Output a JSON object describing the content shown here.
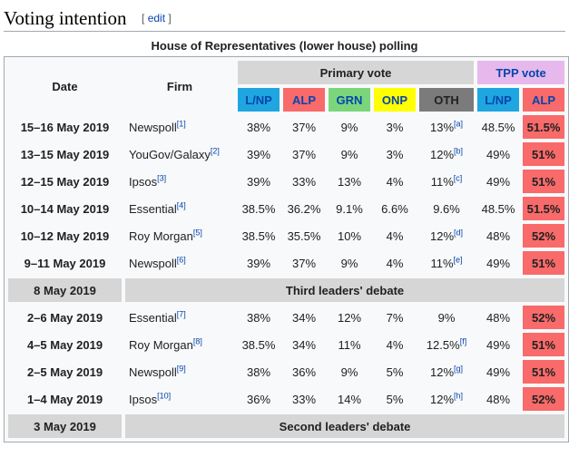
{
  "section": {
    "title": "Voting intention",
    "edit_open": "[",
    "edit_label": "edit",
    "edit_close": "]"
  },
  "table": {
    "caption": "House of Representatives (lower house) polling",
    "headers": {
      "date": "Date",
      "firm": "Firm",
      "primary": "Primary vote",
      "tpp": "TPP vote",
      "parties": [
        "L/NP",
        "ALP",
        "GRN",
        "ONP",
        "OTH"
      ],
      "tpp_parties": [
        "L/NP",
        "ALP"
      ]
    },
    "colors": {
      "lnp": "#1fa6e0",
      "alp": "#f96a6a",
      "grn": "#7bd67b",
      "onp": "#ffff00",
      "oth": "#7b7b7b",
      "tpp_header": "#e6b8ec",
      "event_bg": "#d6d6d6"
    },
    "rows": [
      {
        "date": "15–16 May 2019",
        "firm": "Newspoll",
        "ref": "[1]",
        "lnp": "38%",
        "alp": "37%",
        "grn": "9%",
        "onp": "3%",
        "oth": "13%",
        "oth_ref": "[a]",
        "tpp_lnp": "48.5%",
        "tpp_alp": "51.5%"
      },
      {
        "date": "13–15 May 2019",
        "firm": "YouGov/Galaxy",
        "ref": "[2]",
        "lnp": "39%",
        "alp": "37%",
        "grn": "9%",
        "onp": "3%",
        "oth": "12%",
        "oth_ref": "[b]",
        "tpp_lnp": "49%",
        "tpp_alp": "51%"
      },
      {
        "date": "12–15 May 2019",
        "firm": "Ipsos",
        "ref": "[3]",
        "lnp": "39%",
        "alp": "33%",
        "grn": "13%",
        "onp": "4%",
        "oth": "11%",
        "oth_ref": "[c]",
        "tpp_lnp": "49%",
        "tpp_alp": "51%"
      },
      {
        "date": "10–14 May 2019",
        "firm": "Essential",
        "ref": "[4]",
        "lnp": "38.5%",
        "alp": "36.2%",
        "grn": "9.1%",
        "onp": "6.6%",
        "oth": "9.6%",
        "oth_ref": "",
        "tpp_lnp": "48.5%",
        "tpp_alp": "51.5%"
      },
      {
        "date": "10–12 May 2019",
        "firm": "Roy Morgan",
        "ref": "[5]",
        "lnp": "38.5%",
        "alp": "35.5%",
        "grn": "10%",
        "onp": "4%",
        "oth": "12%",
        "oth_ref": "[d]",
        "tpp_lnp": "48%",
        "tpp_alp": "52%"
      },
      {
        "date": "9–11 May 2019",
        "firm": "Newspoll",
        "ref": "[6]",
        "lnp": "39%",
        "alp": "37%",
        "grn": "9%",
        "onp": "4%",
        "oth": "11%",
        "oth_ref": "[e]",
        "tpp_lnp": "49%",
        "tpp_alp": "51%"
      }
    ],
    "event1": {
      "date": "8 May 2019",
      "label": "Third leaders' debate"
    },
    "rows2": [
      {
        "date": "2–6 May 2019",
        "firm": "Essential",
        "ref": "[7]",
        "lnp": "38%",
        "alp": "34%",
        "grn": "12%",
        "onp": "7%",
        "oth": "9%",
        "oth_ref": "",
        "tpp_lnp": "48%",
        "tpp_alp": "52%"
      },
      {
        "date": "4–5 May 2019",
        "firm": "Roy Morgan",
        "ref": "[8]",
        "lnp": "38.5%",
        "alp": "34%",
        "grn": "11%",
        "onp": "4%",
        "oth": "12.5%",
        "oth_ref": "[f]",
        "tpp_lnp": "49%",
        "tpp_alp": "51%"
      },
      {
        "date": "2–5 May 2019",
        "firm": "Newspoll",
        "ref": "[9]",
        "lnp": "38%",
        "alp": "36%",
        "grn": "9%",
        "onp": "5%",
        "oth": "12%",
        "oth_ref": "[g]",
        "tpp_lnp": "49%",
        "tpp_alp": "51%"
      },
      {
        "date": "1–4 May 2019",
        "firm": "Ipsos",
        "ref": "[10]",
        "lnp": "36%",
        "alp": "33%",
        "grn": "14%",
        "onp": "5%",
        "oth": "12%",
        "oth_ref": "[h]",
        "tpp_lnp": "48%",
        "tpp_alp": "52%"
      }
    ],
    "event2": {
      "date": "3 May 2019",
      "label": "Second leaders' debate"
    }
  }
}
